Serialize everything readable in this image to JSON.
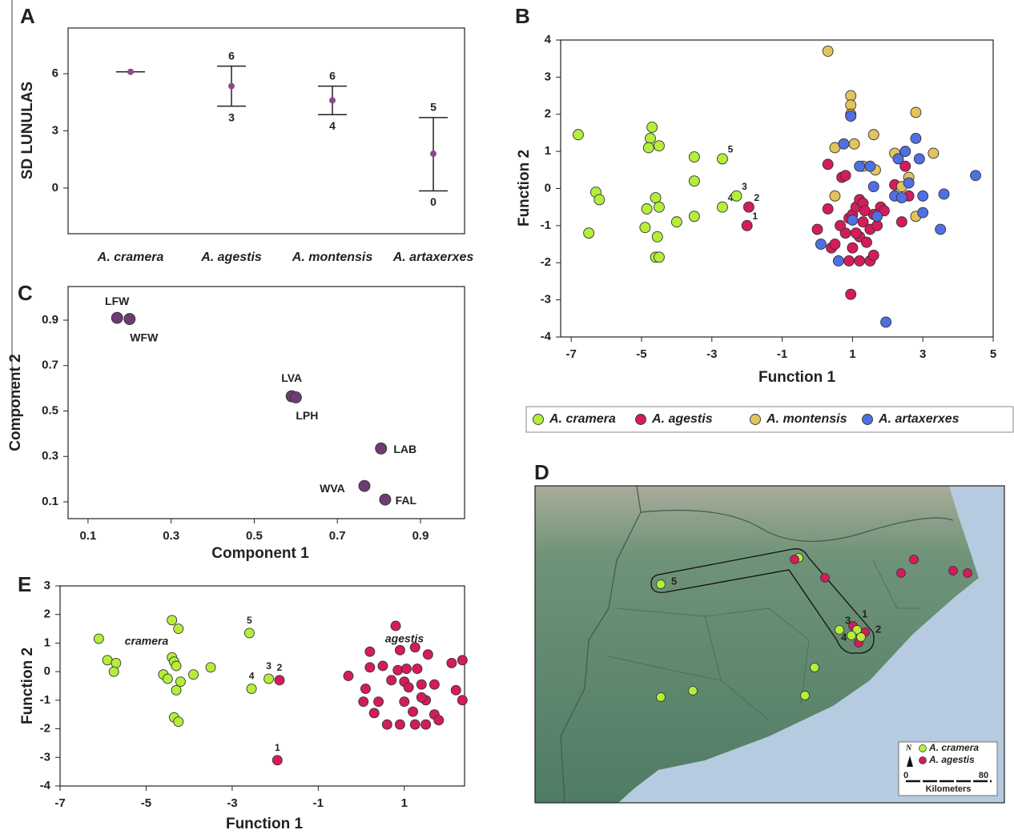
{
  "chart_data": [
    {
      "type": "errorbar",
      "panel": "A",
      "ylabel": "SD LUNULAS",
      "categories": [
        "A. cramera",
        "A. agestis",
        "A. montensis",
        "A. artaxerxes"
      ],
      "values": [
        6.1,
        5.35,
        4.6,
        1.8
      ],
      "low": [
        6.1,
        4.3,
        3.85,
        -0.15
      ],
      "high": [
        6.1,
        6.4,
        5.35,
        3.7
      ],
      "high_labels": [
        null,
        "6",
        "6",
        "5"
      ],
      "low_labels": [
        null,
        "3",
        "4",
        "0"
      ],
      "color": "#8b4a8f",
      "ylim": [
        -2.4,
        8.4
      ],
      "yticks": [
        0,
        3,
        6
      ]
    },
    {
      "type": "scatter",
      "panel": "B",
      "xlabel": "Function 1",
      "ylabel": "Function 2",
      "xlim": [
        -7.3,
        5
      ],
      "xticks": [
        -7,
        -5,
        -3,
        -1,
        1,
        3,
        5
      ],
      "ylim": [
        -4,
        4
      ],
      "yticks": [
        -4,
        -3,
        -2,
        -1,
        0,
        1,
        2,
        3,
        4
      ],
      "legend": "below",
      "series": [
        {
          "name": "A. cramera",
          "color": "#b5ee3a",
          "x": [
            -2.7,
            -2.7,
            -2.3,
            -6.8,
            -6.3,
            -6.2,
            -6.5,
            -4.7,
            -4.75,
            -4.8,
            -4.5,
            -4.6,
            -4.5,
            -4.85,
            -4.9,
            -4.55,
            -4.6,
            -4.5,
            -4.0,
            -3.5,
            -3.5,
            -3.5
          ],
          "y": [
            0.8,
            -0.5,
            -0.2,
            1.45,
            -0.1,
            -0.3,
            -1.2,
            1.65,
            1.35,
            1.1,
            1.15,
            -0.25,
            -0.5,
            -0.55,
            -1.05,
            -1.3,
            -1.85,
            -1.85,
            -0.9,
            0.85,
            0.2,
            -0.75
          ],
          "labels": [
            "5",
            "4",
            "3",
            null,
            null,
            null,
            null,
            null,
            null,
            null,
            null,
            null,
            null,
            null,
            null,
            null,
            null,
            null,
            null,
            null,
            null,
            null
          ]
        },
        {
          "name": "A. agestis",
          "color": "#d41c5c",
          "x": [
            -1.95,
            -2.0,
            0.3,
            0.7,
            0.8,
            0.3,
            0,
            0.4,
            0.5,
            0.8,
            0.9,
            1.0,
            1.1,
            1.2,
            1.3,
            1.2,
            1.0,
            0.9,
            1.2,
            1.5,
            1.6,
            1.4,
            1.5,
            1.6,
            1.8,
            1.9,
            0.95,
            2.2,
            2.4,
            2.6,
            2.5,
            1.3,
            0.65,
            1.1,
            1.35,
            1.7
          ],
          "y": [
            -0.5,
            -1.0,
            0.65,
            0.3,
            0.35,
            -0.55,
            -1.1,
            -1.6,
            -1.5,
            -1.2,
            -0.8,
            -0.7,
            -0.5,
            -0.3,
            -0.9,
            -1.3,
            -1.6,
            -1.95,
            -1.95,
            -1.95,
            -1.8,
            -1.45,
            -1.1,
            -0.7,
            -0.5,
            -0.6,
            -2.85,
            0.1,
            -0.9,
            -0.2,
            0.6,
            -0.4,
            -1.0,
            -1.2,
            -0.6,
            -1.0
          ],
          "labels": [
            "2",
            "1",
            null,
            null,
            null,
            null,
            null,
            null,
            null,
            null,
            null,
            null,
            null,
            null,
            null,
            null,
            null,
            null,
            null,
            null,
            null,
            null,
            null,
            null,
            null,
            null,
            null,
            null,
            null,
            null,
            null,
            null,
            null,
            null,
            null,
            null
          ]
        },
        {
          "name": "A. montensis",
          "color": "#e2c35e",
          "x": [
            0.3,
            0.95,
            0.95,
            0.95,
            2.8,
            1.05,
            1.6,
            0.5,
            1.3,
            1.65,
            2.2,
            3.3,
            0.5,
            2.6,
            2.8,
            2.4
          ],
          "y": [
            3.7,
            2.5,
            2.25,
            2.0,
            2.05,
            1.2,
            1.45,
            1.1,
            0.6,
            0.5,
            0.95,
            0.95,
            -0.2,
            0.3,
            -0.75,
            0.05
          ]
        },
        {
          "name": "A. artaxerxes",
          "color": "#4f6fe3",
          "x": [
            0.95,
            0.75,
            1.2,
            1.5,
            1.6,
            2.5,
            2.8,
            2.9,
            2.3,
            2.6,
            2.2,
            2.4,
            3.0,
            3.6,
            4.5,
            3.0,
            3.5,
            0.1,
            0.6,
            1.0,
            1.7,
            1.95
          ],
          "y": [
            1.95,
            1.2,
            0.6,
            0.6,
            0.05,
            1.0,
            1.35,
            0.8,
            0.8,
            0.15,
            -0.2,
            -0.25,
            -0.2,
            -0.15,
            0.35,
            -0.65,
            -1.1,
            -1.5,
            -1.95,
            -0.85,
            -0.75,
            -3.6
          ]
        }
      ]
    },
    {
      "type": "scatter",
      "panel": "C",
      "xlabel": "Component 1",
      "ylabel": "Component 2",
      "xlim": [
        0.052,
        1.006
      ],
      "xticks": [
        0.1,
        0.3,
        0.5,
        0.7,
        0.9
      ],
      "ylim": [
        0.026,
        1.048
      ],
      "yticks": [
        0.1,
        0.3,
        0.5,
        0.7,
        0.9
      ],
      "series": [
        {
          "color": "#6e3c72",
          "x": [
            0.17,
            0.2,
            0.59,
            0.6,
            0.805,
            0.765,
            0.815
          ],
          "y": [
            0.91,
            0.905,
            0.565,
            0.56,
            0.335,
            0.17,
            0.11
          ],
          "labels": [
            "LFW",
            "WFW",
            "LVA",
            "LPH",
            "LAB",
            "WVA",
            "FAL"
          ]
        }
      ]
    },
    {
      "type": "scatter",
      "panel": "E",
      "xlabel": "Function 1",
      "ylabel": "Function 2",
      "xlim": [
        -7,
        2.4
      ],
      "xticks": [
        -7,
        -5,
        -3,
        -1,
        1
      ],
      "ylim": [
        -4,
        3
      ],
      "yticks": [
        -4,
        -3,
        -2,
        -1,
        0,
        1,
        2,
        3
      ],
      "legend": "inside",
      "series": [
        {
          "name": "cramera",
          "color": "#b5ee3a",
          "x": [
            -2.6,
            -2.55,
            -2.15,
            -6.1,
            -5.9,
            -5.7,
            -5.75,
            -4.4,
            -4.25,
            -4.4,
            -4.35,
            -4.3,
            -4.6,
            -4.5,
            -4.2,
            -4.3,
            -3.9,
            -3.5,
            -4.35,
            -4.25
          ],
          "y": [
            1.35,
            -0.6,
            -0.25,
            1.15,
            0.4,
            0.3,
            0,
            1.8,
            1.5,
            0.5,
            0.35,
            0.2,
            -0.1,
            -0.25,
            -0.35,
            -0.65,
            -0.1,
            0.15,
            -1.6,
            -1.75
          ],
          "labels": [
            "5",
            "4",
            "3",
            null,
            null,
            null,
            null,
            null,
            null,
            null,
            null,
            null,
            null,
            null,
            null,
            null,
            null,
            null,
            null,
            null
          ]
        },
        {
          "name": "agestis",
          "color": "#d41c5c",
          "x": [
            -1.9,
            -1.95,
            0.8,
            0.2,
            0.9,
            1.25,
            1.55,
            0.2,
            0.5,
            0.85,
            1.05,
            1.3,
            0.7,
            1.0,
            1.1,
            1.4,
            1.7,
            -0.3,
            0.1,
            0.05,
            0.4,
            1.0,
            1.5,
            1.2,
            1.7,
            1.8,
            0.9,
            1.25,
            1.5,
            0.6,
            0.3,
            2.35,
            2.35,
            2.2,
            2.1,
            1.4
          ],
          "y": [
            -0.3,
            -3.1,
            1.6,
            0.7,
            0.75,
            0.85,
            0.6,
            0.15,
            0.2,
            0.05,
            0.1,
            0.1,
            -0.3,
            -0.35,
            -0.55,
            -0.45,
            -0.45,
            -0.15,
            -0.6,
            -1.05,
            -1.05,
            -1.05,
            -1.0,
            -1.4,
            -1.5,
            -1.7,
            -1.85,
            -1.85,
            -1.85,
            -1.85,
            -1.45,
            0.4,
            -1.0,
            -0.65,
            0.3,
            -0.9
          ],
          "labels": [
            "2",
            "1",
            null,
            null,
            null,
            null,
            null,
            null,
            null,
            null,
            null,
            null,
            null,
            null,
            null,
            null,
            null,
            null,
            null,
            null,
            null,
            null,
            null,
            null,
            null,
            null,
            null,
            null,
            null,
            null,
            null,
            null,
            null,
            null,
            null,
            null
          ]
        }
      ]
    }
  ],
  "map": {
    "panel": "D",
    "legend": [
      "A. cramera",
      "A. agestis"
    ],
    "north": "N",
    "scale_labels": [
      "0",
      "80"
    ],
    "scale_unit": "Kilometers",
    "site_labels": [
      "5",
      "3",
      "4",
      "1",
      "2"
    ]
  }
}
